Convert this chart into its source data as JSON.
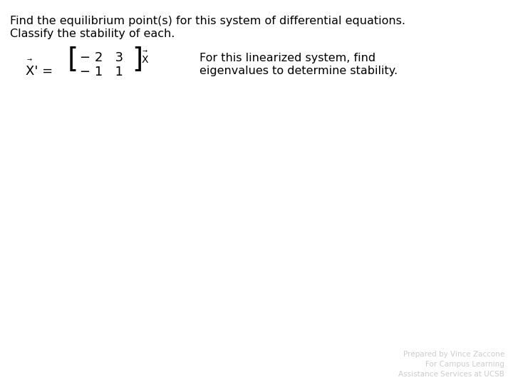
{
  "title_line1": "Find the equilibrium point(s) for this system of differential equations.",
  "title_line2": "Classify the stability of each.",
  "matrix": [
    [
      -2,
      3
    ],
    [
      -1,
      1
    ]
  ],
  "right_text_line1": "For this linearized system, find",
  "right_text_line2": "eigenvalues to determine stability.",
  "footer_line1": "Prepared by Vince Zaccone",
  "footer_line2": "For Campus Learning",
  "footer_line3": "Assistance Services at UCSB",
  "background_color": "#ffffff",
  "text_color": "#000000",
  "footer_color": "#cccccc",
  "title_fontsize": 11.5,
  "body_fontsize": 11.5,
  "matrix_fontsize": 13,
  "bracket_fontsize": 28,
  "footer_fontsize": 7.5,
  "fig_width": 7.2,
  "fig_height": 5.4,
  "dpi": 100
}
